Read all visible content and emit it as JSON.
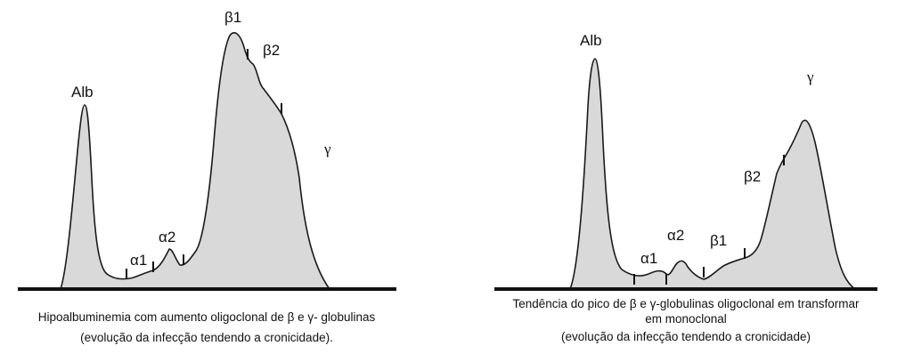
{
  "left_panel": {
    "peaks": {
      "alb": "Alb",
      "alpha1": "α1",
      "alpha2": "α2",
      "beta1": "β1",
      "beta2": "β2",
      "gamma": "γ"
    },
    "caption_line1": "Hipoalbuminemia com aumento oligoclonal de β e γ- globulinas",
    "caption_line2": "(evolução da infecção tendendo a cronicidade)."
  },
  "right_panel": {
    "peaks": {
      "alb": "Alb",
      "alpha1": "α1",
      "alpha2": "α2",
      "beta1": "β1",
      "beta2": "β2",
      "gamma": "γ"
    },
    "caption_line1": "Tendência do pico de β e γ-globulinas oligoclonal em transformar",
    "caption_line2": "em monoclonal",
    "caption_line3": "(evolução da infecção tendendo a cronicidade)"
  },
  "colors": {
    "fill": "#d9d9d9",
    "stroke": "#1a1a1a",
    "baseline": "#111111"
  }
}
